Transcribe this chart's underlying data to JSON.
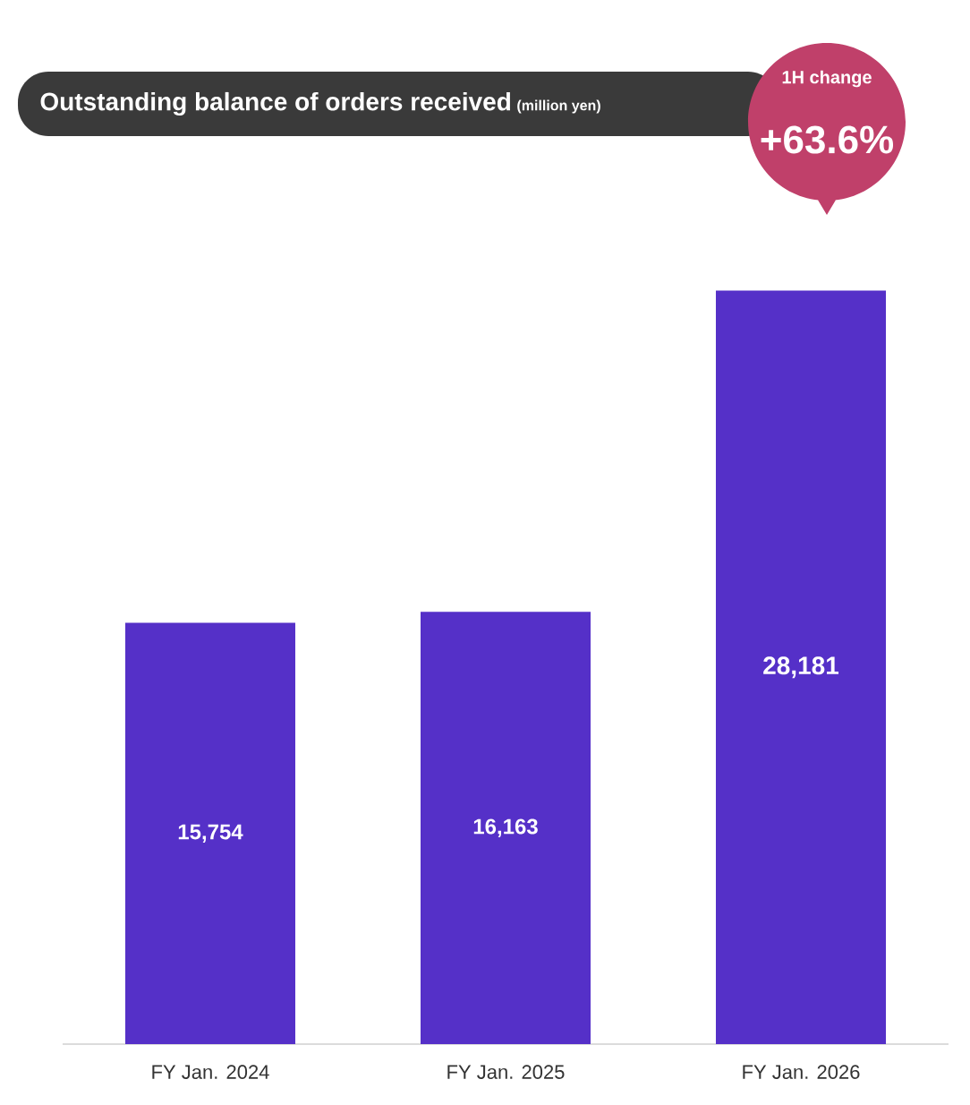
{
  "chart_data": {
    "type": "bar",
    "title": "Outstanding balance of orders received",
    "subtitle": "(million yen)",
    "annotations": [
      "1H change",
      "+63.6%"
    ],
    "categories": [
      "FY Jan. 2024",
      "FY Jan. 2025",
      "FY Jan. 2026"
    ],
    "values": [
      15754,
      16163,
      28181
    ],
    "color": "#5530c8",
    "value_labels": [
      "15,754",
      "16,163",
      "28,181"
    ]
  }
}
